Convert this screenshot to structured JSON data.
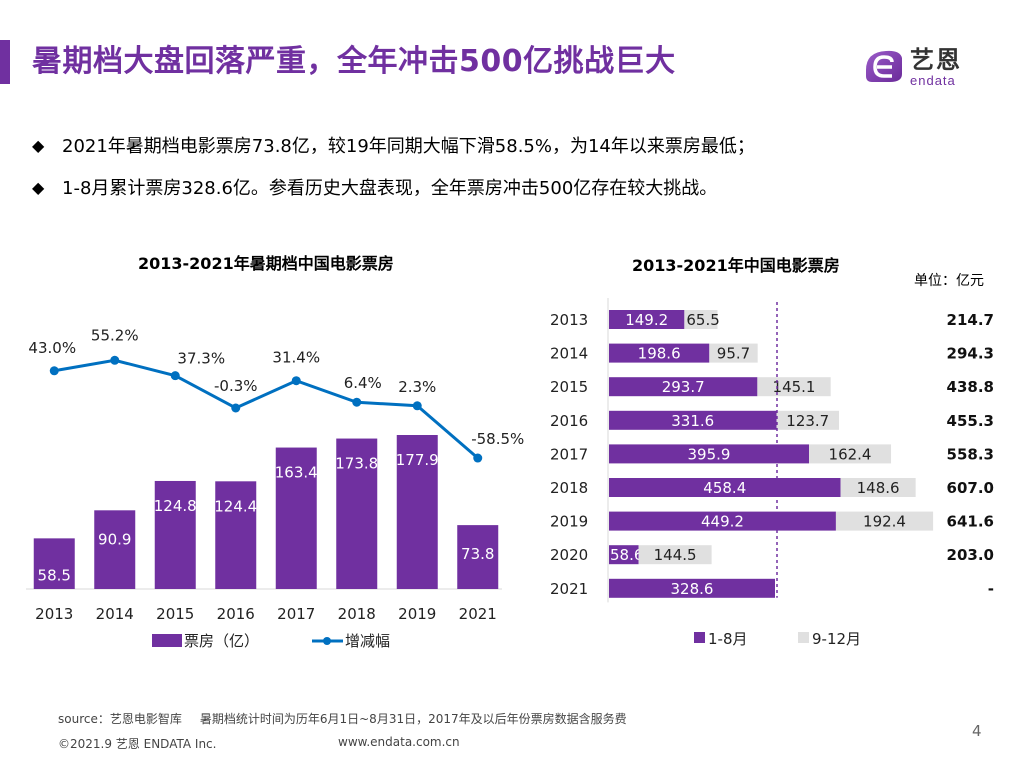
{
  "header": {
    "title": "暑期档大盘回落严重，全年冲击500亿挑战巨大",
    "logo_cn": "艺恩",
    "logo_en": "endata",
    "accent_color": "#7030a0"
  },
  "bullets": [
    {
      "icon": "diamond-bullet",
      "text": "2021年暑期档电影票房73.8亿，较19年同期大幅下滑58.5%，为14年以来票房最低；"
    },
    {
      "icon": "diamond-bullet",
      "text": "1-8月累计票房328.6亿。参看历史大盘表现，全年票房冲击500亿存在较大挑战。"
    }
  ],
  "chart_data": [
    {
      "type": "bar",
      "title": "2013-2021年暑期档中国电影票房",
      "categories": [
        "2013",
        "2014",
        "2015",
        "2016",
        "2017",
        "2018",
        "2019",
        "2021"
      ],
      "series": [
        {
          "name": "票房（亿）",
          "type": "bar",
          "color": "#7030a0",
          "values": [
            58.5,
            90.9,
            124.8,
            124.4,
            163.4,
            173.8,
            177.9,
            73.8
          ],
          "labels": [
            "58.5",
            "90.9",
            "124.8",
            "124.4",
            "163.4",
            "173.8",
            "177.9",
            "73.8"
          ]
        },
        {
          "name": "增减幅",
          "type": "line",
          "color": "#0070c0",
          "values": [
            43.0,
            55.2,
            37.3,
            -0.3,
            31.4,
            6.4,
            2.3,
            -58.5
          ],
          "labels": [
            "43.0%",
            "55.2%",
            "37.3%",
            "-0.3%",
            "31.4%",
            "6.4%",
            "2.3%",
            "-58.5%"
          ]
        }
      ],
      "xlabel": "",
      "ylabel": "",
      "ylim": [
        0,
        200
      ],
      "y2lim": [
        -100,
        60
      ],
      "grid": false,
      "legend": "bottom",
      "legend_labels": [
        "票房（亿）",
        "增减幅"
      ]
    },
    {
      "type": "bar",
      "orientation": "horizontal",
      "stacked": true,
      "title": "2013-2021年中国电影票房",
      "unit": "单位：亿元",
      "categories": [
        "2013",
        "2014",
        "2015",
        "2016",
        "2017",
        "2018",
        "2019",
        "2020",
        "2021"
      ],
      "series": [
        {
          "name": "1-8月",
          "color": "#7030a0",
          "values": [
            149.2,
            198.6,
            293.7,
            331.6,
            395.9,
            458.4,
            449.2,
            58.6,
            328.6
          ],
          "labels": [
            "149.2",
            "198.6",
            "293.7",
            "331.6",
            "395.9",
            "458.4",
            "449.2",
            "58.6",
            "328.6"
          ]
        },
        {
          "name": "9-12月",
          "color": "#e0e0e0",
          "values": [
            65.5,
            95.7,
            145.1,
            123.7,
            162.4,
            148.6,
            192.4,
            144.5,
            null
          ],
          "labels": [
            "65.5",
            "95.7",
            "145.1",
            "123.7",
            "162.4",
            "148.6",
            "192.4",
            "144.5",
            ""
          ]
        }
      ],
      "totals": [
        "214.7",
        "294.3",
        "438.8",
        "455.3",
        "558.3",
        "607.0",
        "641.6",
        "203.0",
        "-"
      ],
      "reference_line": {
        "value": 328.6,
        "style": "dashed",
        "color": "#7030a0"
      },
      "xlim": [
        0,
        700
      ],
      "grid": false,
      "legend": "bottom",
      "legend_labels": [
        "1-8月",
        "9-12月"
      ]
    }
  ],
  "footer": {
    "source_label": "source：艺恩电影智库",
    "note": "暑期档统计时间为历年6月1日~8月31日，2017年及以后年份票房数据含服务费",
    "copyright": "©2021.9 艺恩 ENDATA Inc.",
    "url": "www.endata.com.cn",
    "page_number": "4"
  }
}
